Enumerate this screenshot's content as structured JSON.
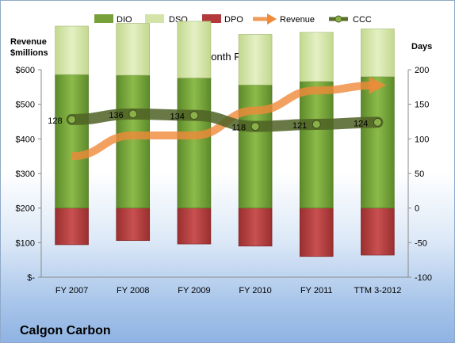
{
  "chart_data": {
    "type": "bar",
    "title": "12-Month Periods",
    "company": "Calgon Carbon",
    "categories": [
      "FY 2007",
      "FY 2008",
      "FY 2009",
      "FY 2010",
      "FY 2011",
      "TTM 3-2012"
    ],
    "left_axis": {
      "label_line1": "Revenue",
      "label_line2": "$millions",
      "ticks": [
        "$-",
        "$100",
        "$200",
        "$300",
        "$400",
        "$500",
        "$600"
      ],
      "range": [
        0,
        600
      ]
    },
    "right_axis": {
      "label": "Days",
      "ticks": [
        "-100",
        "-50",
        "0",
        "50",
        "100",
        "150",
        "200"
      ],
      "range": [
        -100,
        200
      ]
    },
    "legend": [
      "DIO",
      "DSO",
      "DPO",
      "Revenue",
      "CCC"
    ],
    "legend_position": "top",
    "series": [
      {
        "name": "DIO",
        "values": [
          193,
          192,
          188,
          178,
          183,
          190
        ],
        "color": "#77a03a"
      },
      {
        "name": "DSO",
        "values": [
          70,
          75,
          82,
          73,
          71,
          69
        ],
        "color": "#d4e4a8"
      },
      {
        "name": "DPO",
        "values": [
          -53,
          -47,
          -52,
          -55,
          -70,
          -68
        ],
        "color": "#b23a3a"
      },
      {
        "name": "CCC",
        "values": [
          128,
          136,
          134,
          118,
          121,
          124
        ],
        "color": "#5a6e2c"
      },
      {
        "name": "Revenue",
        "values": [
          350,
          410,
          410,
          482,
          540,
          555
        ],
        "axis": "left",
        "color": "#f08a3a"
      }
    ],
    "data_labels": [
      "128",
      "136",
      "134",
      "118",
      "121",
      "124"
    ],
    "grid": false
  }
}
